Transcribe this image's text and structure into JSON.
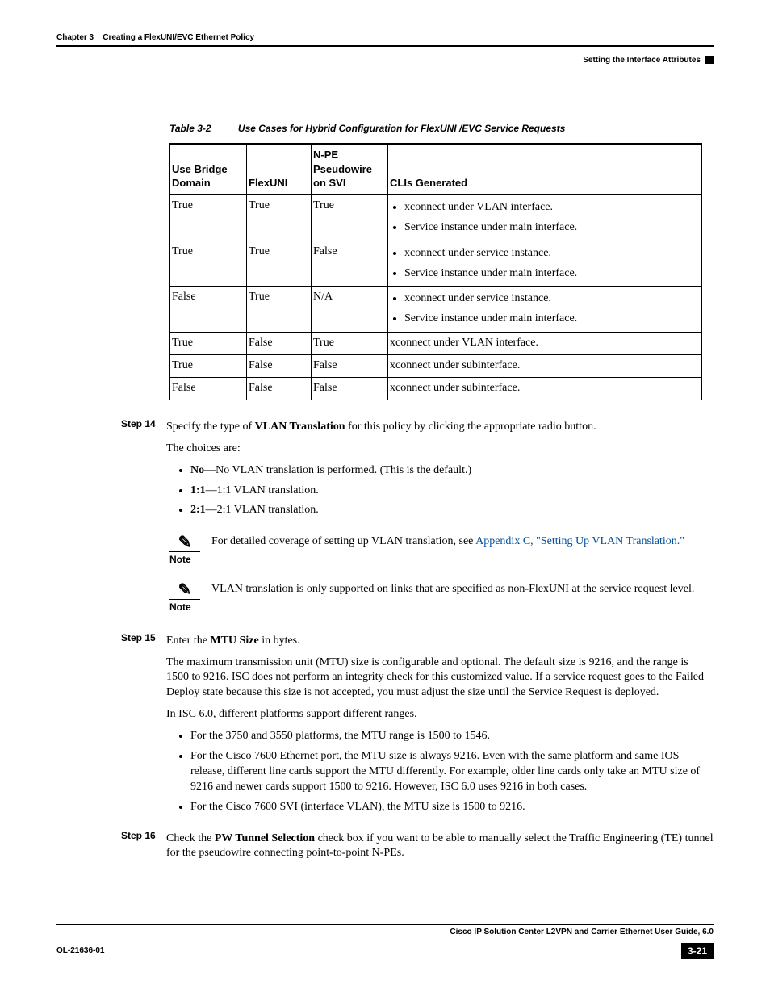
{
  "header": {
    "chapter_label": "Chapter 3",
    "chapter_title": "Creating a FlexUNI/EVC Ethernet Policy",
    "section_title": "Setting the Interface Attributes"
  },
  "table": {
    "label": "Table 3-2",
    "title": "Use Cases for Hybrid Configuration for FlexUNI /EVC Service Requests",
    "columns": [
      "Use Bridge Domain",
      "FlexUNI",
      "N-PE Pseudowire on SVI",
      "CLIs Generated"
    ],
    "rows": [
      {
        "c0": "True",
        "c1": "True",
        "c2": "True",
        "clis": [
          "xconnect under VLAN interface.",
          "Service instance under main interface."
        ]
      },
      {
        "c0": "True",
        "c1": "True",
        "c2": "False",
        "clis": [
          "xconnect under service instance.",
          "Service instance under main interface."
        ]
      },
      {
        "c0": "False",
        "c1": "True",
        "c2": "N/A",
        "clis": [
          "xconnect under service instance.",
          "Service instance under main interface."
        ]
      },
      {
        "c0": "True",
        "c1": "False",
        "c2": "True",
        "clis_plain": "xconnect under VLAN interface."
      },
      {
        "c0": "True",
        "c1": "False",
        "c2": "False",
        "clis_plain": "xconnect under subinterface."
      },
      {
        "c0": "False",
        "c1": "False",
        "c2": "False",
        "clis_plain": "xconnect under subinterface."
      }
    ]
  },
  "steps": {
    "step14": {
      "label": "Step 14",
      "intro_pre": "Specify the type of ",
      "intro_bold": "VLAN Translation",
      "intro_post": " for this policy by clicking the appropriate radio button.",
      "choices_label": "The choices are:",
      "choices": [
        {
          "bold": "No",
          "rest": "—No VLAN translation is performed. (This is the default.)"
        },
        {
          "bold": "1:1",
          "rest": "—1:1 VLAN translation."
        },
        {
          "bold": "2:1",
          "rest": "—2:1 VLAN translation."
        }
      ],
      "note1_pre": "For detailed coverage of setting up VLAN translation, see ",
      "note1_link": "Appendix C, \"Setting Up VLAN Translation.\"",
      "note2": "VLAN translation is only supported on links that are specified as non-FlexUNI at the service request level."
    },
    "step15": {
      "label": "Step 15",
      "intro_pre": "Enter the ",
      "intro_bold": "MTU Size",
      "intro_post": " in bytes.",
      "p1": "The maximum transmission unit (MTU) size is configurable and optional. The default size is 9216, and the range is 1500 to 9216. ISC does not perform an integrity check for this customized value. If a service request goes to the Failed Deploy state because this size is not accepted, you must adjust the size until the Service Request is deployed.",
      "p2": "In ISC 6.0, different platforms support different ranges.",
      "bullets": [
        "For the 3750 and 3550 platforms, the MTU range is 1500 to 1546.",
        "For the Cisco 7600 Ethernet port, the MTU size is always 9216. Even with the same platform and same IOS release, different line cards support the MTU differently. For example, older line cards only take an MTU size of 9216 and newer cards support 1500 to 9216. However, ISC 6.0 uses 9216 in both cases.",
        "For the Cisco 7600 SVI (interface VLAN), the MTU size is 1500 to 9216."
      ]
    },
    "step16": {
      "label": "Step 16",
      "intro_pre": "Check the ",
      "intro_bold": "PW Tunnel Selection",
      "intro_post": " check box if you want to be able to manually select the Traffic Engineering (TE) tunnel for the pseudowire connecting point-to-point N-PEs."
    }
  },
  "note_word": "Note",
  "footer": {
    "guide": "Cisco IP Solution Center L2VPN and Carrier Ethernet User Guide, 6.0",
    "doc": "OL-21636-01",
    "page": "3-21"
  }
}
